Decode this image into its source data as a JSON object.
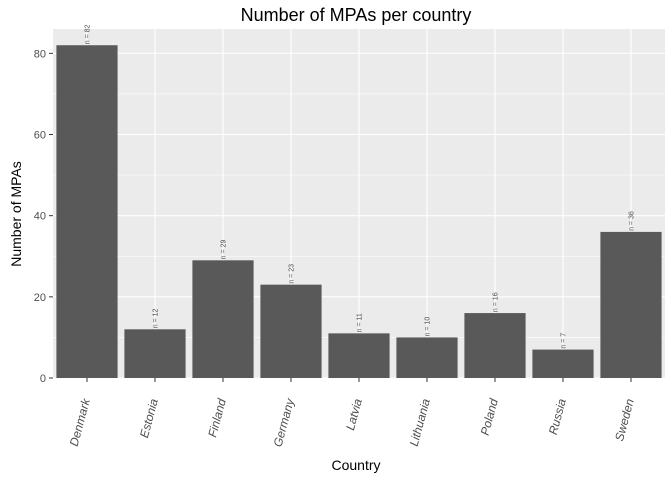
{
  "chart_data": {
    "type": "bar",
    "title": "Number of MPAs per country",
    "xlabel": "Country",
    "ylabel": "Number of MPAs",
    "categories": [
      "Denmark",
      "Estonia",
      "Finland",
      "Germany",
      "Latvia",
      "Lithuania",
      "Poland",
      "Russia",
      "Sweden"
    ],
    "values": [
      82,
      12,
      29,
      23,
      11,
      10,
      16,
      7,
      36
    ],
    "data_labels": [
      "n = 82",
      "n = 12",
      "n = 29",
      "n = 23",
      "n = 11",
      "n = 10",
      "n = 16",
      "n = 7",
      "n = 36"
    ],
    "ylim": [
      0,
      86
    ],
    "yticks": [
      0,
      20,
      40,
      60,
      80
    ],
    "grid": true,
    "bar_color": "#595959",
    "panel_background": "#ebebeb",
    "gridline_color": "#ffffff"
  }
}
